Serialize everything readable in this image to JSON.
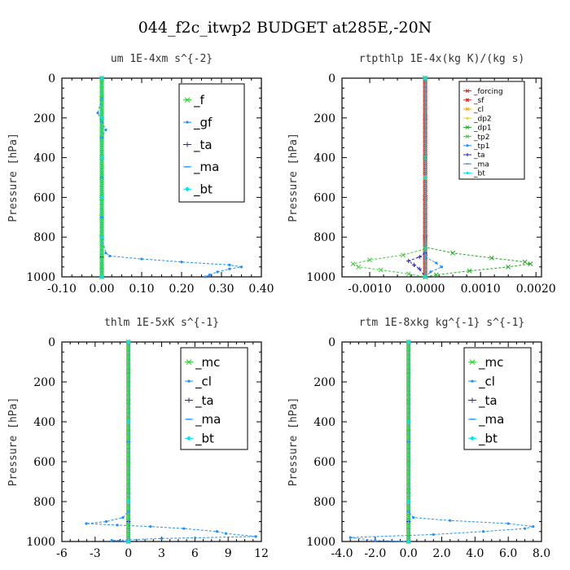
{
  "title": "044_f2c_itwp2  BUDGET at285E,-20N",
  "chart_data": [
    {
      "type": "line",
      "title": "um   1E-4xm s^{-2}",
      "ylabel": "Pressure [hPa]",
      "xlim": [
        -0.1,
        0.4
      ],
      "ylim": [
        1000,
        0
      ],
      "xticks": [
        "-0.10",
        "0.00",
        "0.10",
        "0.20",
        "0.30",
        "0.40"
      ],
      "yticks": [
        "0",
        "200",
        "400",
        "600",
        "800",
        "1000"
      ],
      "legend_position": "top-right",
      "series": [
        {
          "name": "_f",
          "color": "#22cc22",
          "marker": "x",
          "x": [
            0,
            0,
            0,
            0,
            0,
            0,
            0,
            0,
            0,
            0,
            0,
            0
          ],
          "y": [
            0,
            100,
            200,
            300,
            400,
            500,
            600,
            700,
            800,
            900,
            950,
            1000
          ]
        },
        {
          "name": "_gf",
          "color": "#1e90ff",
          "marker": "cross",
          "x": [
            0.0,
            0.0,
            -0.01,
            0.0,
            0.01,
            0.0,
            0.0,
            0.0,
            0.0,
            0.0,
            0.0,
            0.01,
            0.02,
            0.1,
            0.2,
            0.32,
            0.35,
            0.32,
            0.29,
            0.27,
            0.26
          ],
          "y": [
            0,
            100,
            175,
            220,
            260,
            300,
            400,
            500,
            600,
            700,
            800,
            880,
            895,
            910,
            925,
            940,
            950,
            960,
            975,
            990,
            1000
          ]
        },
        {
          "name": "_ta",
          "color": "#2222cc",
          "marker": "plus",
          "x": [
            0,
            0,
            0,
            0,
            0,
            0,
            0
          ],
          "y": [
            0,
            200,
            400,
            600,
            800,
            900,
            1000
          ]
        },
        {
          "name": "_ma",
          "color": "#1e90ff",
          "marker": "dash",
          "x": [
            0,
            0,
            0,
            0
          ],
          "y": [
            0,
            300,
            700,
            1000
          ]
        },
        {
          "name": "_bt",
          "color": "#00e5ee",
          "marker": "diamond",
          "x": [
            0,
            0,
            0,
            0,
            0,
            0
          ],
          "y": [
            0,
            200,
            400,
            600,
            800,
            1000
          ]
        }
      ]
    },
    {
      "type": "line",
      "title": "rtpthlp   1E-4x(kg K)/(kg s)",
      "ylabel": "Pressure [hPa]",
      "xlim": [
        -0.0015,
        0.0021
      ],
      "ylim": [
        1000,
        0
      ],
      "xticks": [
        "-0.0010",
        "0.0000",
        "0.0010",
        "0.0020"
      ],
      "xtick_values": [
        -0.001,
        0.0,
        0.001,
        0.002
      ],
      "yticks": [
        "0",
        "200",
        "400",
        "600",
        "800",
        "1000"
      ],
      "legend_position": "top-right",
      "series": [
        {
          "name": "_forcing",
          "color": "#dd2222",
          "marker": "x",
          "x": [
            0,
            0,
            0,
            0,
            0,
            0,
            0
          ],
          "y": [
            0,
            200,
            400,
            600,
            800,
            900,
            1000
          ]
        },
        {
          "name": "_sf",
          "color": "#ee2222",
          "marker": "star",
          "x": [
            0,
            0,
            0,
            0
          ],
          "y": [
            0,
            400,
            800,
            1000
          ]
        },
        {
          "name": "_cl",
          "color": "#ffa500",
          "marker": "x",
          "x": [
            0,
            0,
            0
          ],
          "y": [
            0,
            500,
            1000
          ]
        },
        {
          "name": "_dp2",
          "color": "#dddd00",
          "marker": "diamond",
          "x": [
            0,
            0,
            0
          ],
          "y": [
            0,
            500,
            1000
          ]
        },
        {
          "name": "_dp1",
          "color": "#22aa22",
          "marker": "x",
          "x": [
            0.0,
            0.0,
            0.0,
            0.0005,
            0.0012,
            0.0018,
            0.0019,
            0.0015,
            0.0008,
            0.0002,
            0.0
          ],
          "y": [
            0,
            400,
            850,
            880,
            905,
            925,
            935,
            950,
            970,
            990,
            1000
          ]
        },
        {
          "name": "_tp2",
          "color": "#44cc44",
          "marker": "x",
          "x": [
            0.0,
            0.0,
            0.0,
            -0.0004,
            -0.001,
            -0.0013,
            -0.0012,
            -0.0008,
            -0.0003,
            0.0
          ],
          "y": [
            0,
            400,
            860,
            890,
            915,
            935,
            950,
            965,
            985,
            1000
          ]
        },
        {
          "name": "_tp1",
          "color": "#1e90ff",
          "marker": "cross",
          "x": [
            0.0,
            0.0,
            0.0,
            0.0002,
            0.0003,
            0.0001,
            0.0
          ],
          "y": [
            0,
            500,
            900,
            930,
            950,
            975,
            1000
          ]
        },
        {
          "name": "_ta",
          "color": "#2222cc",
          "marker": "plus",
          "x": [
            0.0,
            0.0,
            0.0,
            -0.0001,
            -0.0003,
            -0.0002,
            -0.0001,
            0.0
          ],
          "y": [
            0,
            500,
            880,
            900,
            920,
            940,
            960,
            1000
          ]
        },
        {
          "name": "_ma",
          "color": "#1e90ff",
          "marker": "dash",
          "x": [
            0,
            0,
            0
          ],
          "y": [
            0,
            500,
            1000
          ]
        },
        {
          "name": "_bt",
          "color": "#00e5ee",
          "marker": "diamond",
          "x": [
            0,
            0,
            0
          ],
          "y": [
            0,
            500,
            1000
          ]
        }
      ]
    },
    {
      "type": "line",
      "title": "thlm   1E-5xK s^{-1}",
      "ylabel": "Pressure [hPa]",
      "xlim": [
        -6,
        12
      ],
      "ylim": [
        1000,
        0
      ],
      "xticks": [
        "-6",
        "-3",
        "0",
        "3",
        "6",
        "9",
        "12"
      ],
      "yticks": [
        "0",
        "200",
        "400",
        "600",
        "800",
        "1000"
      ],
      "legend_position": "top-right",
      "series": [
        {
          "name": "_mc",
          "color": "#22cc22",
          "marker": "x",
          "x": [
            0,
            0,
            0,
            0,
            0,
            0,
            0,
            0
          ],
          "y": [
            0,
            150,
            300,
            450,
            600,
            750,
            900,
            1000
          ]
        },
        {
          "name": "_cl",
          "color": "#1e90ff",
          "marker": "cross",
          "x": [
            0.0,
            0.0,
            -0.5,
            -2.0,
            -3.8,
            -1.0,
            2.0,
            5.0,
            8.0,
            8.8,
            11.5,
            3.0,
            -1.5,
            0.0
          ],
          "y": [
            0,
            850,
            880,
            900,
            910,
            918,
            925,
            935,
            950,
            960,
            975,
            985,
            995,
            1000
          ]
        },
        {
          "name": "_ta",
          "color": "#2222cc",
          "marker": "plus",
          "x": [
            0,
            0,
            0,
            0
          ],
          "y": [
            0,
            500,
            900,
            1000
          ]
        },
        {
          "name": "_ma",
          "color": "#1e90ff",
          "marker": "dash",
          "x": [
            0,
            0,
            0
          ],
          "y": [
            0,
            500,
            1000
          ]
        },
        {
          "name": "_bt",
          "color": "#00e5ee",
          "marker": "diamond",
          "x": [
            0,
            0,
            0,
            0
          ],
          "y": [
            0,
            400,
            800,
            1000
          ]
        }
      ]
    },
    {
      "type": "line",
      "title": "rtm   1E-8xkg kg^{-1} s^{-1}",
      "ylabel": "Pressure [hPa]",
      "xlim": [
        -4.0,
        8.0
      ],
      "ylim": [
        1000,
        0
      ],
      "xticks": [
        "-4.0",
        "-2.0",
        "0.0",
        "2.0",
        "4.0",
        "6.0",
        "8.0"
      ],
      "yticks": [
        "0",
        "200",
        "400",
        "600",
        "800",
        "1000"
      ],
      "legend_position": "top-right",
      "series": [
        {
          "name": "_mc",
          "color": "#22cc22",
          "marker": "x",
          "x": [
            0,
            0,
            0,
            0,
            0,
            0,
            0,
            0
          ],
          "y": [
            0,
            150,
            300,
            450,
            600,
            750,
            900,
            1000
          ]
        },
        {
          "name": "_cl",
          "color": "#1e90ff",
          "marker": "cross",
          "x": [
            0.0,
            0.0,
            0.3,
            2.5,
            6.0,
            7.5,
            7.0,
            4.5,
            1.5,
            -3.5,
            -2.0,
            0.0
          ],
          "y": [
            0,
            850,
            880,
            895,
            910,
            925,
            935,
            950,
            965,
            980,
            995,
            1000
          ]
        },
        {
          "name": "_ta",
          "color": "#2222cc",
          "marker": "plus",
          "x": [
            0,
            0,
            0,
            0
          ],
          "y": [
            0,
            500,
            900,
            1000
          ]
        },
        {
          "name": "_ma",
          "color": "#1e90ff",
          "marker": "dash",
          "x": [
            0,
            0,
            0
          ],
          "y": [
            0,
            500,
            1000
          ]
        },
        {
          "name": "_bt",
          "color": "#00e5ee",
          "marker": "diamond",
          "x": [
            0,
            0,
            0,
            0
          ],
          "y": [
            0,
            400,
            800,
            1000
          ]
        }
      ]
    }
  ]
}
